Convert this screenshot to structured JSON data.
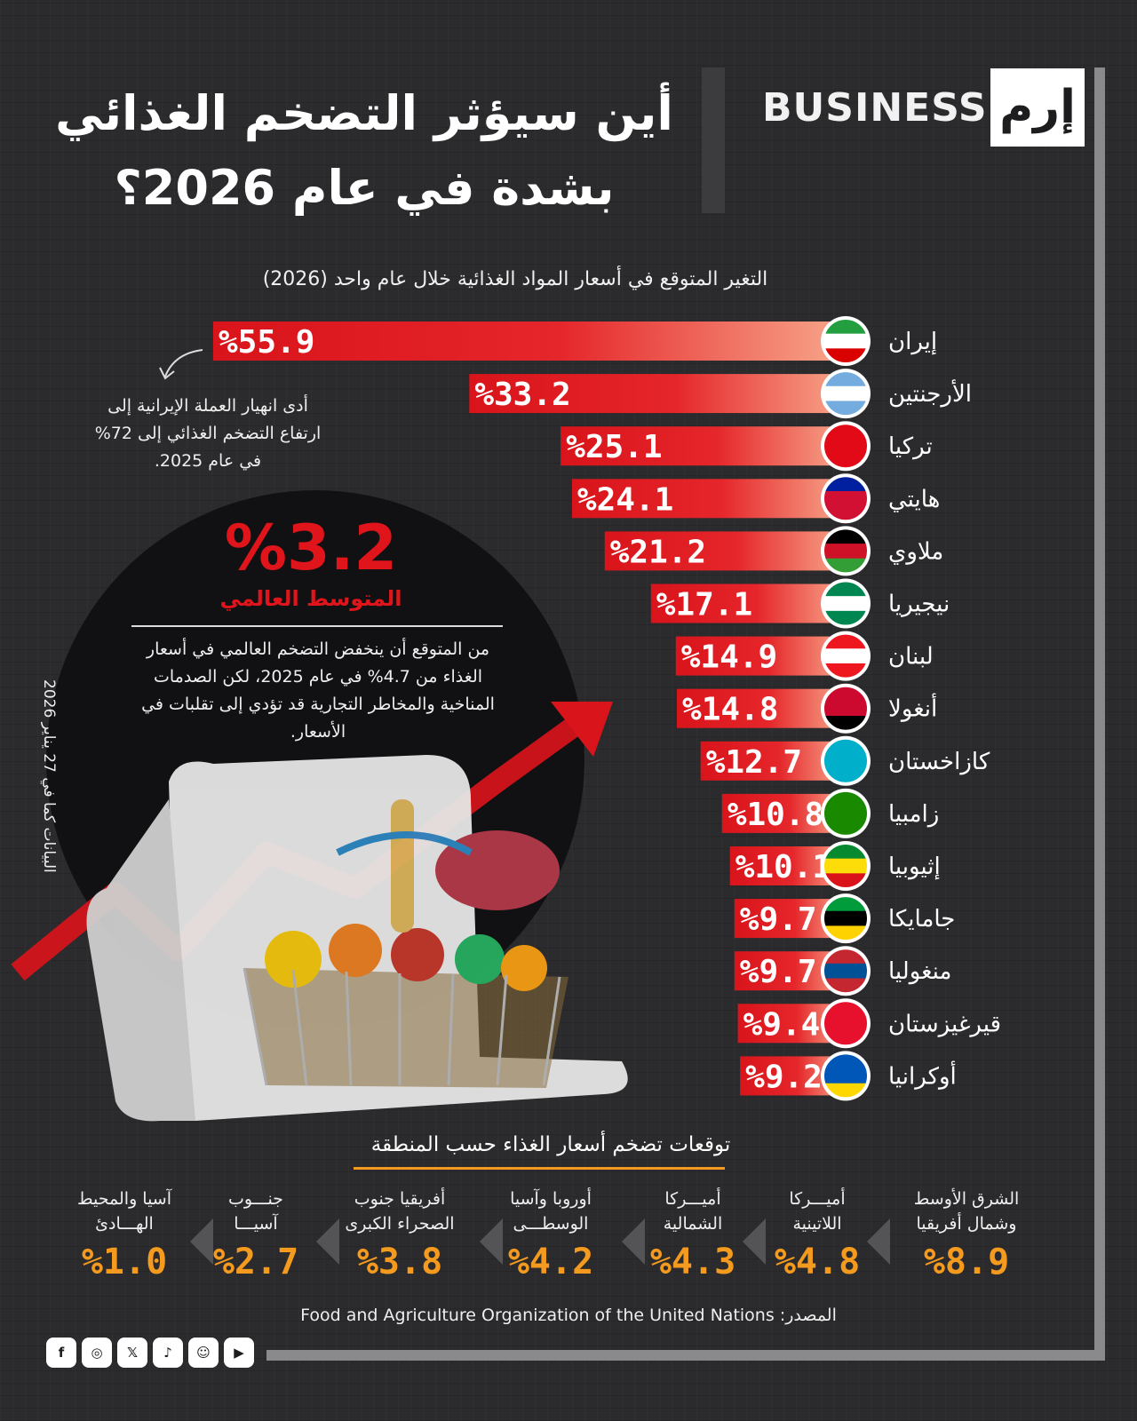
{
  "brand": {
    "name": "BUSINESS",
    "mark": "إرم"
  },
  "title_lines": [
    "أين سيؤثر التضخم الغذائي",
    "بشدة في عام 2026؟"
  ],
  "chart_data": {
    "type": "bar",
    "title": "التغير المتوقع في أسعار المواد الغذائية خلال عام واحد (2026)",
    "categories": [
      "إيران",
      "الأرجنتين",
      "تركيا",
      "هايتي",
      "ملاوي",
      "نيجيريا",
      "لبنان",
      "أنغولا",
      "كازاخستان",
      "زامبيا",
      "إثيوبيا",
      "جامايكا",
      "منغوليا",
      "قيرغيزستان",
      "أوكرانيا"
    ],
    "values": [
      55.9,
      33.2,
      25.1,
      24.1,
      21.2,
      17.1,
      14.9,
      14.8,
      12.7,
      10.8,
      10.1,
      9.7,
      9.7,
      9.4,
      9.2
    ],
    "value_labels": [
      "%55.9",
      "%33.2",
      "%25.1",
      "%24.1",
      "%21.2",
      "%17.1",
      "%14.9",
      "%14.8",
      "%12.7",
      "%10.8",
      "%10.1",
      "%9.7",
      "%9.7",
      "%9.4",
      "%9.2"
    ],
    "flag_icons": [
      "flag-iran-icon",
      "flag-argentina-icon",
      "flag-turkey-icon",
      "flag-haiti-icon",
      "flag-malawi-icon",
      "flag-nigeria-icon",
      "flag-lebanon-icon",
      "flag-angola-icon",
      "flag-kazakhstan-icon",
      "flag-zambia-icon",
      "flag-ethiopia-icon",
      "flag-jamaica-icon",
      "flag-mongolia-icon",
      "flag-kyrgyzstan-icon",
      "flag-ukraine-icon"
    ],
    "bar_color": "#e0141b",
    "bar_highlight": "#f7a58a",
    "annotation": "أدى انهيار العملة الإيرانية إلى ارتفاع التضخم الغذائي إلى 72% في عام 2025."
  },
  "global_average": {
    "value": "%3.2",
    "label": "المتوسط العالمي",
    "description": "من المتوقع أن ينخفض التضخم العالمي في أسعار الغذاء من 4.7% في عام 2025، لكن الصدمات المناخية والمخاطر التجارية قد تؤدي إلى تقلبات في الأسعار."
  },
  "data_as_of": "البيانات كما في 27 يناير 2026",
  "regions": {
    "title": "توقعات تضخم أسعار الغذاء حسب المنطقة",
    "items": [
      {
        "label": "الشرق الأوسط وشمال أفريقيا",
        "value": "%8.9"
      },
      {
        "label": "أميـــركا اللاتينية",
        "value": "%4.8"
      },
      {
        "label": "أميـــركا الشمالية",
        "value": "%4.3"
      },
      {
        "label": "أوروبا وآسيا الوسطـــى",
        "value": "%4.2"
      },
      {
        "label": "أفريقيا جنوب الصحراء الكبرى",
        "value": "%3.8"
      },
      {
        "label": "جنـــوب آسيـــا",
        "value": "%2.7"
      },
      {
        "label": "آسيا والمحيط الهـــادئ",
        "value": "%1.0"
      }
    ]
  },
  "source": "المصدر: Food and Agriculture Organization of the United Nations",
  "social": [
    "facebook-icon",
    "instagram-icon",
    "x-icon",
    "tiktok-icon",
    "snapchat-icon",
    "youtube-icon"
  ],
  "colors": {
    "accent": "#e0141b",
    "regional": "#f39a1f",
    "background": "#2b2b2d"
  }
}
